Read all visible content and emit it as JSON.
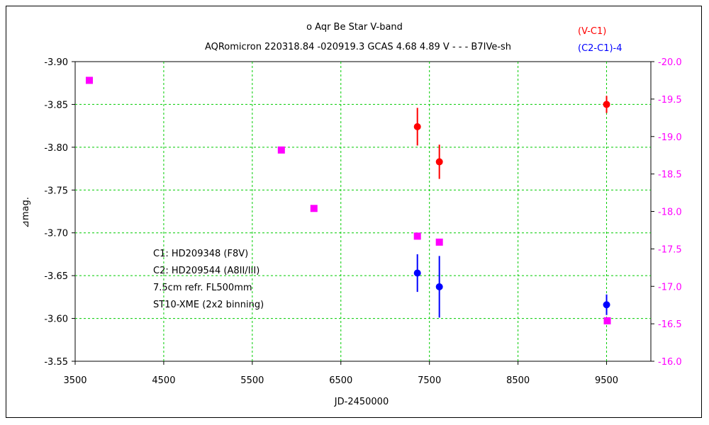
{
  "chart_data": {
    "type": "scatter",
    "title": "o  Aqr    Be Star    V-band",
    "subtitle": "AQRomicron 220318.84 -020919.3 GCAS 4.68 4.89 V - - - B7IVe-sh",
    "xlabel": "JD-2450000",
    "ylabel": "⊿mag.",
    "xlim": [
      3500,
      10000
    ],
    "ylim_left": [
      -3.9,
      -3.55
    ],
    "ylim_right": [
      -20.0,
      -16.0
    ],
    "x_ticks": [
      "3500",
      "4500",
      "5500",
      "6500",
      "7500",
      "8500",
      "9500"
    ],
    "x_tick_values": [
      3500,
      4500,
      5500,
      6500,
      7500,
      8500,
      9500
    ],
    "y_left_ticks": [
      "-3.90",
      "-3.85",
      "-3.80",
      "-3.75",
      "-3.70",
      "-3.65",
      "-3.60",
      "-3.55"
    ],
    "y_left_tick_values": [
      -3.9,
      -3.85,
      -3.8,
      -3.75,
      -3.7,
      -3.65,
      -3.6,
      -3.55
    ],
    "y_right_ticks": [
      "-20.0",
      "-19.5",
      "-19.0",
      "-18.5",
      "-18.0",
      "-17.5",
      "-17.0",
      "-16.5",
      "-16.0"
    ],
    "y_right_tick_values": [
      -20.0,
      -19.5,
      -19.0,
      -18.5,
      -18.0,
      -17.5,
      -17.0,
      -16.5,
      -16.0
    ],
    "grid": true,
    "legend_position": "top-right",
    "series": [
      {
        "name": "(V-C1)",
        "axis": "left",
        "color": "#ff0000",
        "marker": "circle",
        "x": [
          7364,
          7612,
          9500
        ],
        "y": [
          -3.824,
          -3.783,
          -3.85
        ],
        "yerr": [
          0.022,
          0.02,
          0.01
        ]
      },
      {
        "name": "(C2-C1)-4",
        "axis": "left",
        "color": "#0000ff",
        "marker": "circle",
        "x": [
          7364,
          7612,
          9500
        ],
        "y": [
          -3.653,
          -3.637,
          -3.616
        ],
        "yerr": [
          0.022,
          0.036,
          0.012
        ]
      },
      {
        "axis": "right",
        "color": "#ff00ff",
        "marker": "square",
        "x": [
          3660,
          5828,
          6196,
          7364,
          7612,
          9508
        ],
        "y": [
          -19.75,
          -18.82,
          -18.04,
          -17.67,
          -17.59,
          -16.54
        ]
      }
    ],
    "annotations": [
      "C1: HD209348 (F8V)",
      "C2: HD209544 (A8II/III)",
      "7.5cm refr. FL500mm",
      "ST10-XME (2x2 binning)"
    ],
    "colors": {
      "grid": "#00cc00",
      "right_axis": "#ff00ff"
    }
  }
}
